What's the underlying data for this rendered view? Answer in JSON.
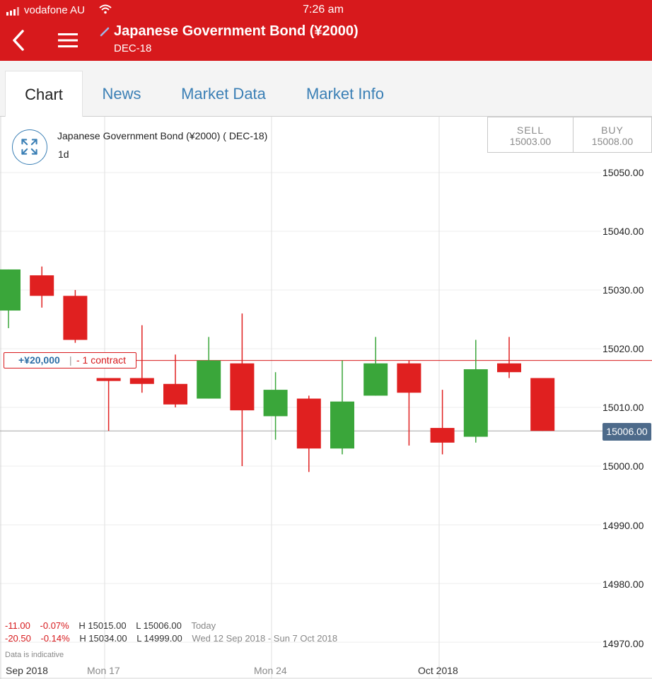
{
  "status_bar": {
    "carrier": "vodafone AU",
    "time": "7:26 am"
  },
  "header": {
    "title": "Japanese Government Bond (¥2000)",
    "subtitle": "DEC-18",
    "brand_color": "#d7191c"
  },
  "tabs": [
    {
      "label": "Chart",
      "active": true
    },
    {
      "label": "News",
      "active": false
    },
    {
      "label": "Market Data",
      "active": false
    },
    {
      "label": "Market Info",
      "active": false
    }
  ],
  "chart_panel": {
    "instrument": "Japanese Government Bond (¥2000) ( DEC-18)",
    "period": "1d",
    "sell": {
      "label": "SELL",
      "value": "15003.00"
    },
    "buy": {
      "label": "BUY",
      "value": "15008.00"
    },
    "current_price": "15006.00",
    "position": {
      "pnl": "+¥20,000",
      "separator": "|",
      "quantity": "- 1 contract",
      "level": 15018
    },
    "stats": [
      {
        "change": "-11.00",
        "pct": "-0.07%",
        "high": "H 15015.00",
        "low": "L 15006.00",
        "range": "Today"
      },
      {
        "change": "-20.50",
        "pct": "-0.14%",
        "high": "H 15034.00",
        "low": "L 14999.00",
        "range": "Wed 12 Sep 2018 - Sun 7 Oct 2018"
      }
    ],
    "indicative_note": "Data is indicative"
  },
  "chart_data": {
    "type": "candlestick",
    "y_ticks": [
      "15050.00",
      "15040.00",
      "15030.00",
      "15020.00",
      "15010.00",
      "15000.00",
      "14990.00",
      "14980.00",
      "14970.00"
    ],
    "x_labels": [
      "Sep 2018",
      "Mon 17",
      "Mon 24",
      "Oct 2018"
    ],
    "ylim": [
      14966,
      15056
    ],
    "up_color": "#3aa63a",
    "down_color": "#e02020",
    "candles": [
      {
        "open": 15026.5,
        "close": 15033.5,
        "high": 15033.5,
        "low": 15023.5
      },
      {
        "open": 15032.5,
        "close": 15029.0,
        "high": 15034.0,
        "low": 15027.0
      },
      {
        "open": 15029.0,
        "close": 15021.5,
        "high": 15030.0,
        "low": 15021.0
      },
      {
        "open": 15015.0,
        "close": 15014.5,
        "high": 15015.0,
        "low": 15006.0
      },
      {
        "open": 15015.0,
        "close": 15014.0,
        "high": 15024.0,
        "low": 15012.5
      },
      {
        "open": 15014.0,
        "close": 15010.5,
        "high": 15019.0,
        "low": 15010.0
      },
      {
        "open": 15011.5,
        "close": 15018.0,
        "high": 15022.0,
        "low": 15011.5
      },
      {
        "open": 15017.5,
        "close": 15009.5,
        "high": 15026.0,
        "low": 15000.0
      },
      {
        "open": 15008.5,
        "close": 15013.0,
        "high": 15016.0,
        "low": 15004.5
      },
      {
        "open": 15011.5,
        "close": 15003.0,
        "high": 15012.0,
        "low": 14999.0
      },
      {
        "open": 15003.0,
        "close": 15011.0,
        "high": 15018.0,
        "low": 15002.0
      },
      {
        "open": 15012.0,
        "close": 15017.5,
        "high": 15022.0,
        "low": 15012.0
      },
      {
        "open": 15017.5,
        "close": 15012.5,
        "high": 15018.0,
        "low": 15003.5
      },
      {
        "open": 15006.5,
        "close": 15004.0,
        "high": 15013.0,
        "low": 15002.0
      },
      {
        "open": 15005.0,
        "close": 15016.5,
        "high": 15021.5,
        "low": 15004.0
      },
      {
        "open": 15017.5,
        "close": 15016.0,
        "high": 15022.0,
        "low": 15015.0
      },
      {
        "open": 15015.0,
        "close": 15006.0,
        "high": 15015.0,
        "low": 15006.0
      }
    ]
  }
}
